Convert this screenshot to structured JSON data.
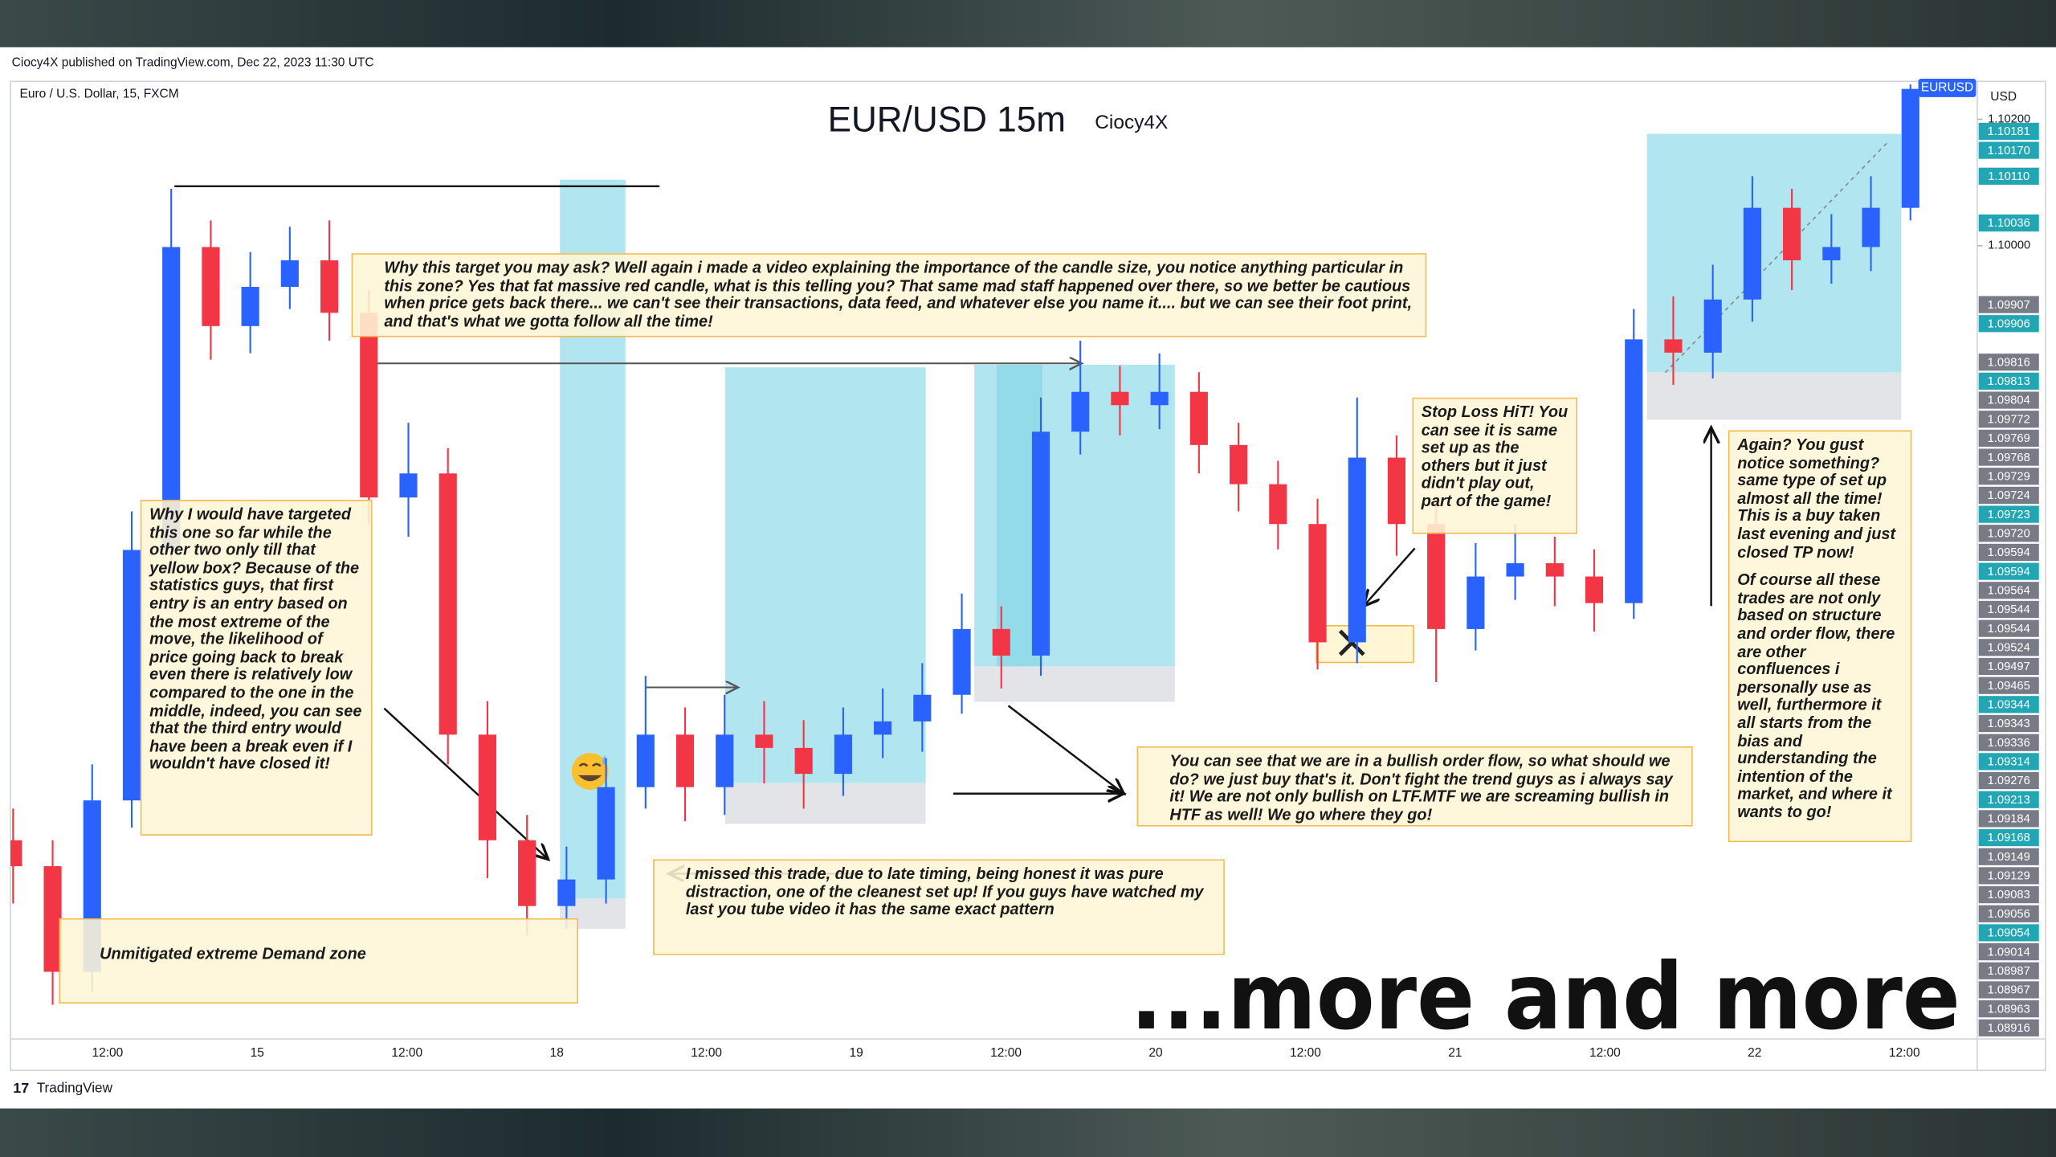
{
  "header": {
    "publisher": "Ciocy4X published on TradingView.com, Dec 22, 2023 11:30 UTC",
    "symbol_info": "Euro / U.S. Dollar, 15, FXCM",
    "symbol": "EURUSD",
    "currency": "USD",
    "footer_logo": "TradingView"
  },
  "chart_data": {
    "type": "candlestick",
    "title": "EUR/USD 15m",
    "subtitle": "Ciocy4X",
    "up_color": "#2962ff",
    "down_color": "#f23645",
    "open": [
      1.0906,
      1.09019,
      1.08852,
      1.09123,
      1.09519,
      1.09998,
      1.09873,
      1.09935,
      1.09977,
      1.09894,
      1.09602,
      1.0964,
      1.09227,
      1.0906,
      1.08956,
      1.08998,
      1.09144,
      1.09227,
      1.09144,
      1.09227,
      1.09206,
      1.09165,
      1.09227,
      1.09248,
      1.0929,
      1.09394,
      1.09352,
      1.09706,
      1.09769,
      1.09748,
      1.09769,
      1.09685,
      1.09623,
      1.0956,
      1.09373,
      1.09665,
      1.0956,
      1.09394,
      1.09477,
      1.09498,
      1.09477,
      1.09435,
      1.09852,
      1.09831,
      1.09915,
      1.1006,
      1.09977,
      1.09998,
      1.1006
    ],
    "high": [
      1.0911,
      1.0906,
      1.0918,
      1.0958,
      1.1009,
      1.1004,
      1.0999,
      1.1003,
      1.1004,
      1.0993,
      1.0972,
      1.0968,
      1.0928,
      1.091,
      1.0905,
      1.0919,
      1.0932,
      1.0927,
      1.0929,
      1.0928,
      1.0925,
      1.0927,
      1.093,
      1.0934,
      1.0945,
      1.0943,
      1.0976,
      1.0985,
      1.0981,
      1.0983,
      1.098,
      1.0972,
      1.0966,
      1.096,
      1.0976,
      1.097,
      1.096,
      1.0953,
      1.0956,
      1.0954,
      1.0952,
      1.099,
      1.0992,
      1.0997,
      1.1011,
      1.1009,
      1.1005,
      1.1011,
      1.10255
    ],
    "low": [
      1.0896,
      1.088,
      1.0882,
      1.0908,
      1.0948,
      1.0982,
      1.0983,
      1.099,
      1.0985,
      1.0956,
      1.0954,
      1.0918,
      1.09,
      1.0891,
      1.0892,
      1.0896,
      1.0911,
      1.0909,
      1.091,
      1.0915,
      1.0911,
      1.0913,
      1.0919,
      1.092,
      1.0926,
      1.093,
      1.0932,
      1.0967,
      1.097,
      1.0971,
      1.0964,
      1.0958,
      1.0952,
      1.0933,
      1.0934,
      1.0951,
      1.0931,
      1.0936,
      1.0944,
      1.0943,
      1.0939,
      1.0941,
      1.0978,
      1.0979,
      1.0988,
      1.0993,
      1.0994,
      1.0996,
      1.1004
    ],
    "close": [
      1.09019,
      1.08852,
      1.09123,
      1.09519,
      1.09998,
      1.09873,
      1.09935,
      1.09977,
      1.09894,
      1.09602,
      1.0964,
      1.09227,
      1.0906,
      1.08956,
      1.08998,
      1.09144,
      1.09227,
      1.09144,
      1.09227,
      1.09206,
      1.09165,
      1.09227,
      1.09248,
      1.0929,
      1.09394,
      1.09352,
      1.09706,
      1.09769,
      1.09748,
      1.09769,
      1.09685,
      1.09623,
      1.0956,
      1.09373,
      1.09665,
      1.0956,
      1.09394,
      1.09477,
      1.09498,
      1.09477,
      1.09435,
      1.09852,
      1.09831,
      1.09915,
      1.1006,
      1.09977,
      1.09998,
      1.1006,
      1.10248
    ],
    "ylim": [
      1.0875,
      1.1026
    ],
    "yticks": [
      {
        "value": 1.102,
        "label": "1.10200"
      },
      {
        "value": 1.1,
        "label": "1.10000"
      }
    ],
    "price_markers": [
      {
        "value": 1.10181,
        "label": "1.10181",
        "color": "#22a6b3"
      },
      {
        "value": 1.1017,
        "label": "1.10170",
        "color": "#22a6b3"
      },
      {
        "value": 1.1011,
        "label": "1.10110",
        "color": "#22a6b3"
      },
      {
        "value": 1.10036,
        "label": "1.10036",
        "color": "#22a6b3"
      },
      {
        "value": 1.09907,
        "label": "1.09907",
        "color": "#787b86"
      },
      {
        "value": 1.09906,
        "label": "1.09906",
        "color": "#22a6b3"
      },
      {
        "value": 1.09816,
        "label": "1.09816",
        "color": "#787b86"
      },
      {
        "value": 1.09813,
        "label": "1.09813",
        "color": "#22a6b3"
      },
      {
        "value": 1.09804,
        "label": "1.09804",
        "color": "#787b86"
      },
      {
        "value": 1.09772,
        "label": "1.09772",
        "color": "#787b86"
      },
      {
        "value": 1.09769,
        "label": "1.09769",
        "color": "#787b86"
      },
      {
        "value": 1.09768,
        "label": "1.09768",
        "color": "#787b86"
      },
      {
        "value": 1.09729,
        "label": "1.09729",
        "color": "#787b86"
      },
      {
        "value": 1.09724,
        "label": "1.09724",
        "color": "#787b86"
      },
      {
        "value": 1.09723,
        "label": "1.09723",
        "color": "#22a6b3"
      },
      {
        "value": 1.0972,
        "label": "1.09720",
        "color": "#787b86"
      },
      {
        "value": 1.09594,
        "label": "1.09594",
        "color": "#787b86"
      },
      {
        "value": 1.09594,
        "label": "1.09594",
        "color": "#22a6b3"
      },
      {
        "value": 1.09564,
        "label": "1.09564",
        "color": "#787b86"
      },
      {
        "value": 1.09544,
        "label": "1.09544",
        "color": "#787b86"
      },
      {
        "value": 1.09544,
        "label": "1.09544",
        "color": "#787b86"
      },
      {
        "value": 1.09524,
        "label": "1.09524",
        "color": "#787b86"
      },
      {
        "value": 1.09497,
        "label": "1.09497",
        "color": "#787b86"
      },
      {
        "value": 1.09465,
        "label": "1.09465",
        "color": "#787b86"
      },
      {
        "value": 1.09344,
        "label": "1.09344",
        "color": "#22a6b3"
      },
      {
        "value": 1.09343,
        "label": "1.09343",
        "color": "#787b86"
      },
      {
        "value": 1.09336,
        "label": "1.09336",
        "color": "#787b86"
      },
      {
        "value": 1.09314,
        "label": "1.09314",
        "color": "#22a6b3"
      },
      {
        "value": 1.09276,
        "label": "1.09276",
        "color": "#787b86"
      },
      {
        "value": 1.09213,
        "label": "1.09213",
        "color": "#22a6b3"
      },
      {
        "value": 1.09184,
        "label": "1.09184",
        "color": "#787b86"
      },
      {
        "value": 1.09168,
        "label": "1.09168",
        "color": "#22a6b3"
      },
      {
        "value": 1.09149,
        "label": "1.09149",
        "color": "#787b86"
      },
      {
        "value": 1.09129,
        "label": "1.09129",
        "color": "#787b86"
      },
      {
        "value": 1.09083,
        "label": "1.09083",
        "color": "#787b86"
      },
      {
        "value": 1.09056,
        "label": "1.09056",
        "color": "#787b86"
      },
      {
        "value": 1.09054,
        "label": "1.09054",
        "color": "#22a6b3"
      },
      {
        "value": 1.09014,
        "label": "1.09014",
        "color": "#787b86"
      },
      {
        "value": 1.08987,
        "label": "1.08987",
        "color": "#787b86"
      },
      {
        "value": 1.08967,
        "label": "1.08967",
        "color": "#787b86"
      },
      {
        "value": 1.08963,
        "label": "1.08963",
        "color": "#787b86"
      },
      {
        "value": 1.08916,
        "label": "1.08916",
        "color": "#787b86"
      }
    ],
    "xticks": [
      "12:00",
      "15",
      "12:00",
      "18",
      "12:00",
      "19",
      "12:00",
      "20",
      "12:00",
      "21",
      "12:00",
      "22",
      "12:00"
    ],
    "annotations": [
      {
        "paragraphs": [
          "Why this target you may ask? Well again i made a video explaining the importance of the candle size, you notice anything particular in this zone? Yes that fat massive red candle, what is this telling you? That same mad staff happened over there, so we better be cautious when price gets back there... we can't see their transactions, data feed, and whatever else you name it.... but we can see their foot print, and that's what we gotta follow all the time!"
        ]
      },
      {
        "paragraphs": [
          "Why I would have targeted this one so far while the other two only till that yellow box? Because of the statistics guys, that first entry is an entry based on the most extreme of the move, the likelihood of price going back to break even there is relatively low compared to the one in the middle, indeed, you can see that the third entry would have been a break even if I wouldn't have closed it!"
        ]
      },
      {
        "paragraphs": [
          "Unmitigated extreme Demand zone"
        ]
      },
      {
        "paragraphs": [
          "I missed this trade, due to late timing, being honest it was pure distraction, one of the cleanest set up! If you guys have watched my last you tube video it has the same exact pattern"
        ]
      },
      {
        "paragraphs": [
          "You can see that we are in a bullish order flow, so what should we do? we just buy that's it. Don't fight the trend guys as i always say it! We are not only bullish on LTF.MTF we are screaming bullish in HTF as well! We go where they go!"
        ]
      },
      {
        "paragraphs": [
          "Stop Loss HiT! You can see it is same set up as the others but it just didn't play out, part of the game!"
        ]
      },
      {
        "paragraphs": [
          "Again? You gust notice something? same type of set up almost all the time! This is a buy taken last evening and just closed TP now!",
          "Of course all these trades are not only based on structure and order flow, there are other confluences i personally use as well, furthermore it all starts from the bias and understanding the intention of the market, and where it wants to go!"
        ]
      }
    ],
    "overlay_text": "...more and more"
  }
}
